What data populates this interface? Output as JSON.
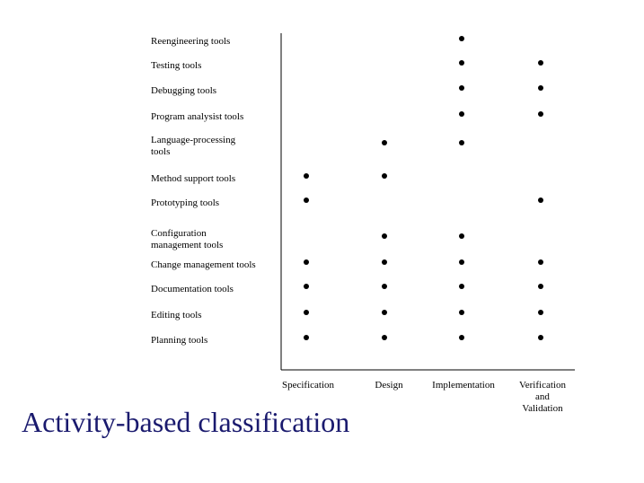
{
  "title": "Activity-based classification",
  "chart_data": {
    "type": "scatter",
    "title": "Activity-based classification",
    "rows": [
      "Reengineering  tools",
      "Testing tools",
      "Debugging tools",
      "Program analysist tools",
      "Language-processing\ntools",
      "Method support tools",
      "Prototyping tools",
      "Configuration\nmanagement tools",
      "Change management tools",
      "Documentation tools",
      "Editing tools",
      "Planning  tools"
    ],
    "columns": [
      "Specification",
      "Design",
      "Implementation",
      "Verification\nand\nValidation"
    ],
    "marks": [
      {
        "row": 0,
        "col": 2
      },
      {
        "row": 1,
        "col": 2
      },
      {
        "row": 1,
        "col": 3
      },
      {
        "row": 2,
        "col": 2
      },
      {
        "row": 2,
        "col": 3
      },
      {
        "row": 3,
        "col": 2
      },
      {
        "row": 3,
        "col": 3
      },
      {
        "row": 4,
        "col": 1
      },
      {
        "row": 4,
        "col": 2
      },
      {
        "row": 5,
        "col": 0
      },
      {
        "row": 5,
        "col": 1
      },
      {
        "row": 6,
        "col": 0
      },
      {
        "row": 6,
        "col": 3
      },
      {
        "row": 7,
        "col": 1
      },
      {
        "row": 7,
        "col": 2
      },
      {
        "row": 8,
        "col": 0
      },
      {
        "row": 8,
        "col": 1
      },
      {
        "row": 8,
        "col": 2
      },
      {
        "row": 8,
        "col": 3
      },
      {
        "row": 9,
        "col": 0
      },
      {
        "row": 9,
        "col": 1
      },
      {
        "row": 9,
        "col": 2
      },
      {
        "row": 9,
        "col": 3
      },
      {
        "row": 10,
        "col": 0
      },
      {
        "row": 10,
        "col": 1
      },
      {
        "row": 10,
        "col": 2
      },
      {
        "row": 10,
        "col": 3
      },
      {
        "row": 11,
        "col": 0
      },
      {
        "row": 11,
        "col": 1
      },
      {
        "row": 11,
        "col": 2
      },
      {
        "row": 11,
        "col": 3
      }
    ],
    "grid": false,
    "legend": "none"
  }
}
